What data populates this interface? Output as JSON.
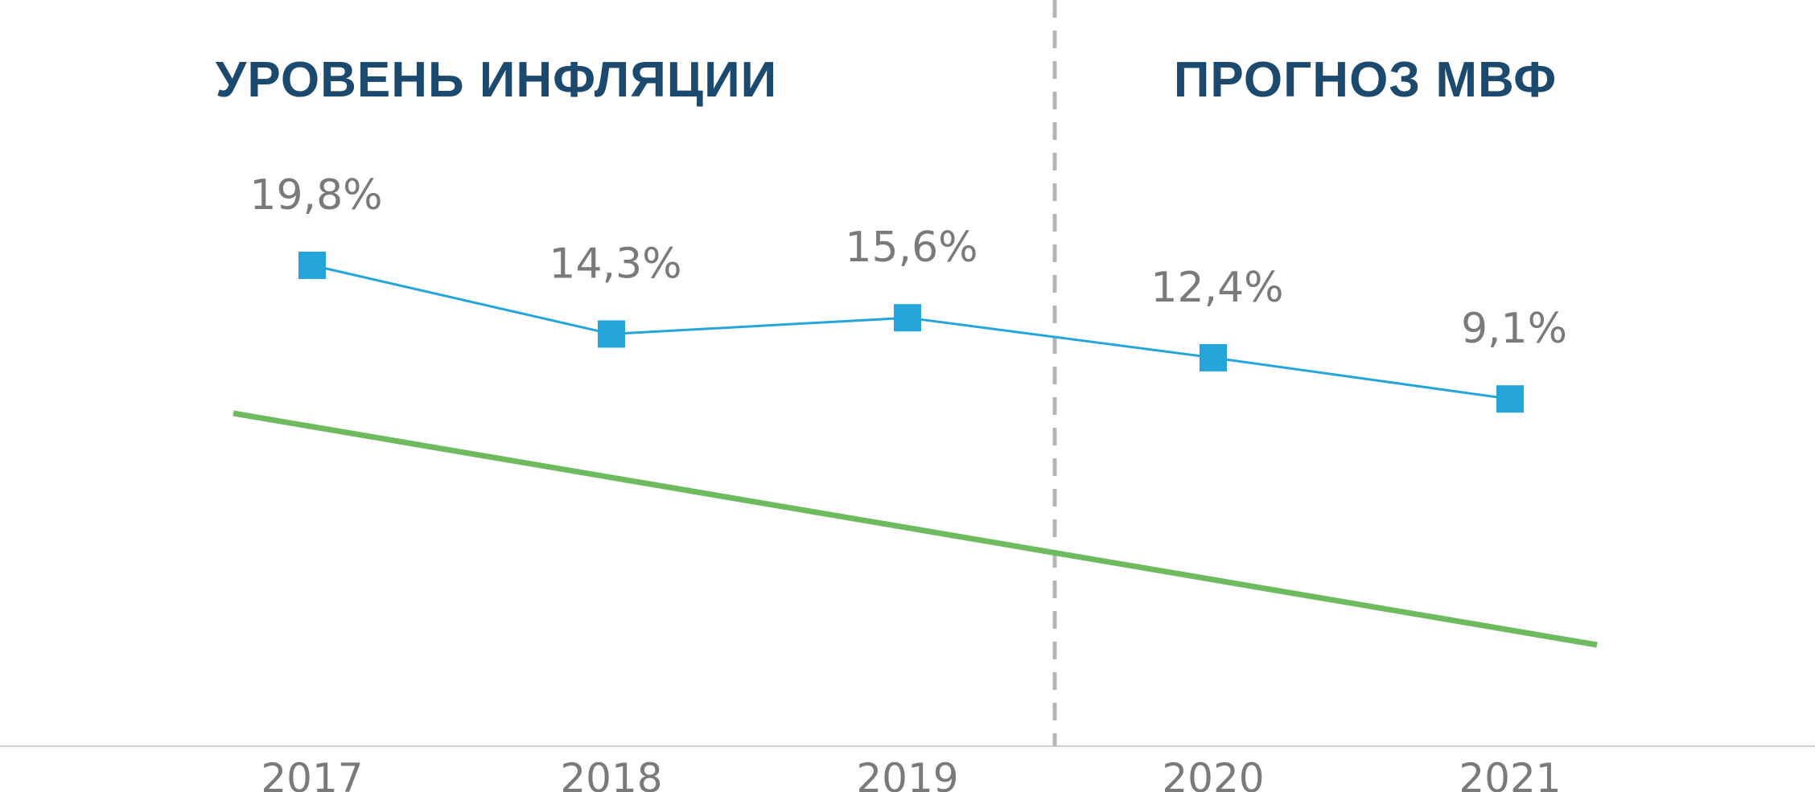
{
  "chart_data": {
    "type": "line",
    "categories": [
      "2017",
      "2018",
      "2019",
      "2020",
      "2021"
    ],
    "series": [
      {
        "values": [
          19.8,
          14.3,
          15.6,
          12.4,
          9.1
        ],
        "labels": [
          "19,8%",
          "14,3%",
          "15,6%",
          "12,4%",
          "9,1%"
        ],
        "color": "#25a5d9",
        "marker": "square"
      },
      {
        "kind": "trend-line",
        "color": "#6dba5f"
      }
    ],
    "sections": [
      {
        "title": "УРОВЕНЬ ИНФЛЯЦИИ",
        "years": [
          "2017",
          "2018",
          "2019"
        ]
      },
      {
        "title": "ПРОГНОЗ МВФ",
        "years": [
          "2020",
          "2021"
        ]
      }
    ],
    "divider": {
      "between": [
        "2019",
        "2020"
      ],
      "style": "dashed",
      "color": "#b5b5b5"
    },
    "grid": false,
    "yaxis_visible": false,
    "colors": {
      "title": "#1c4a6e",
      "labels": "#7a7a7a",
      "axis": "#d0d0d0"
    }
  }
}
